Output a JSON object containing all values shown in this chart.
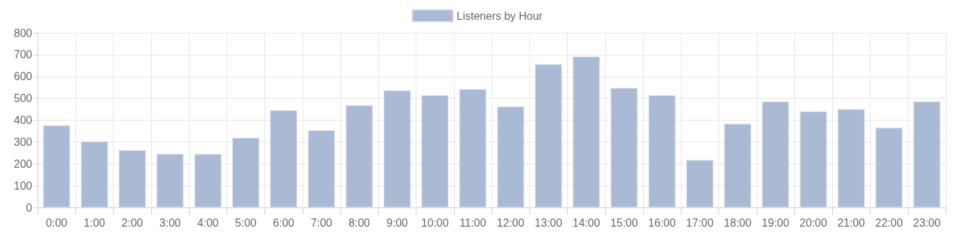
{
  "chart_data": {
    "type": "bar",
    "categories": [
      "0:00",
      "1:00",
      "2:00",
      "3:00",
      "4:00",
      "5:00",
      "6:00",
      "7:00",
      "8:00",
      "9:00",
      "10:00",
      "11:00",
      "12:00",
      "13:00",
      "14:00",
      "15:00",
      "16:00",
      "17:00",
      "18:00",
      "19:00",
      "20:00",
      "21:00",
      "22:00",
      "23:00"
    ],
    "series": [
      {
        "name": "Listeners by Hour",
        "color": "#aabad4",
        "values": [
          377,
          303,
          263,
          246,
          246,
          320,
          446,
          354,
          469,
          537,
          515,
          543,
          463,
          657,
          692,
          548,
          515,
          218,
          384,
          486,
          441,
          451,
          366,
          486
        ]
      }
    ],
    "ylim": [
      0,
      800
    ],
    "yticks": [
      0,
      100,
      200,
      300,
      400,
      500,
      600,
      700,
      800
    ],
    "grid": true,
    "legend": "top"
  }
}
